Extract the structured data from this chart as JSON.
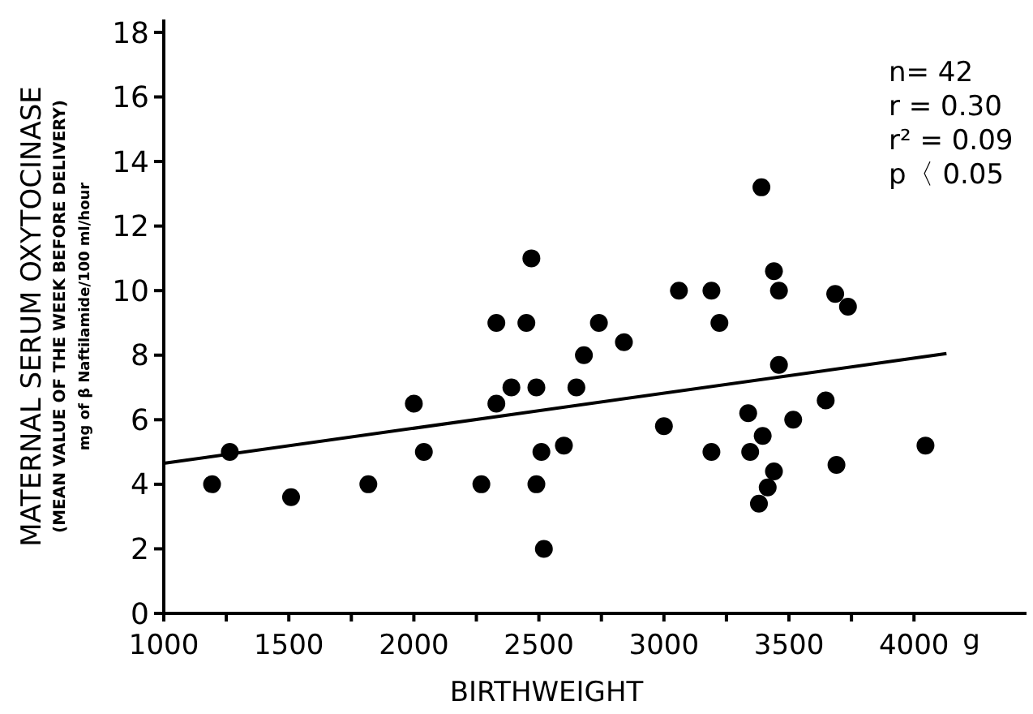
{
  "chart_data": {
    "type": "scatter",
    "xlabel": "BIRTHWEIGHT",
    "ylabel": "MATERNAL SERUM OXYTOCINASE\n(MEAN VALUE OF THE WEEK BEFORE DELIVERY)\nmg of β Naftilamide/100 ml/hour",
    "xlim": [
      1000,
      4450
    ],
    "ylim": [
      0,
      18.4
    ],
    "xticks": [
      1000,
      {
        "value": 1250,
        "label": null
      },
      1500,
      {
        "value": 1750,
        "label": null
      },
      2000,
      {
        "value": 2250,
        "label": null
      },
      2500,
      {
        "value": 2750,
        "label": null
      },
      3000,
      {
        "value": 3250,
        "label": null
      },
      3500,
      {
        "value": 3750,
        "label": null
      },
      4000
    ],
    "yticks": [
      0,
      2,
      4,
      6,
      8,
      10,
      12,
      14,
      16,
      18
    ],
    "grid": false,
    "marker": "circle",
    "series": [
      {
        "color": "#000000",
        "x": [
          1193,
          1264,
          1509,
          1818,
          2000,
          2040,
          2270,
          2330,
          2330,
          2390,
          2450,
          2470,
          2490,
          2510,
          2490,
          2520,
          2600,
          2650,
          2680,
          2740,
          2840,
          3000,
          3060,
          3190,
          3222,
          3190,
          3390,
          3440,
          3460,
          3460,
          3337,
          3395,
          3345,
          3440,
          3415,
          3380,
          3517,
          3647,
          3685,
          3736,
          3690,
          4046
        ],
        "values": [
          4.0,
          5.0,
          3.6,
          4.0,
          6.5,
          5.0,
          4.0,
          9.0,
          6.5,
          7.0,
          9.0,
          11.0,
          7.0,
          5.0,
          4.0,
          2.0,
          5.2,
          7.0,
          8.0,
          9.0,
          8.4,
          5.8,
          10.0,
          10.0,
          9.0,
          5.0,
          13.2,
          10.6,
          10.0,
          7.7,
          6.2,
          5.5,
          5.0,
          4.4,
          3.9,
          3.4,
          6.0,
          6.6,
          9.9,
          9.5,
          4.6,
          5.2
        ]
      },
      {
        "type": "line",
        "color": "#000000",
        "line_style": "solid",
        "marker": "none",
        "x": [
          1000,
          4130
        ],
        "values": [
          4.65,
          8.05
        ]
      }
    ],
    "annotations": [
      "g",
      "n= 42",
      "r = 0.30",
      "r² = 0.09",
      "p〈 0.05"
    ]
  }
}
